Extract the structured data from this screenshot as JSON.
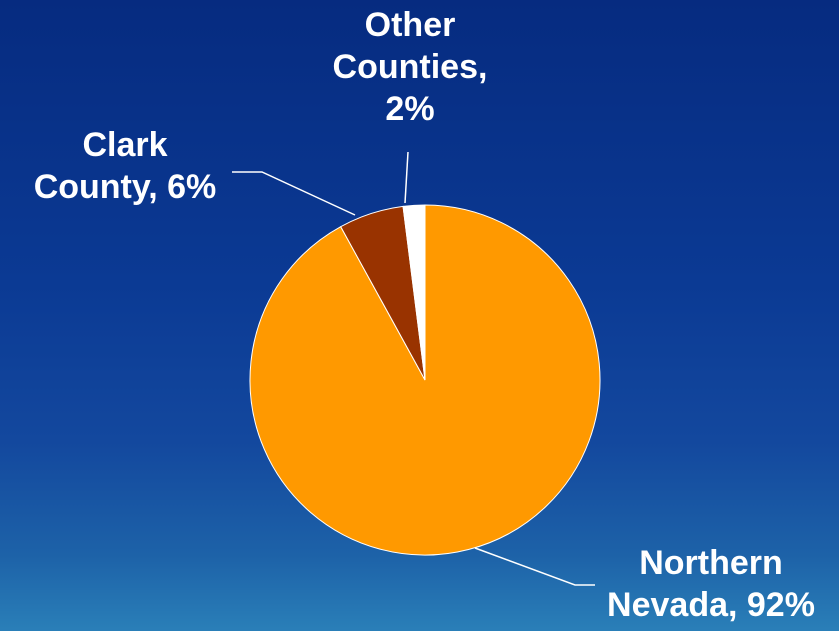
{
  "chart_data": {
    "type": "pie",
    "slices": [
      {
        "label_line1": "Northern",
        "label_line2": "Nevada, 92%",
        "value": 92,
        "color": "#ff9900"
      },
      {
        "label_line1": "Clark",
        "label_line2": "County, 6%",
        "value": 6,
        "color": "#993300"
      },
      {
        "label_line1": "Other",
        "label_line2": "Counties,",
        "label_line3": "2%",
        "value": 2,
        "color": "#ffffff"
      }
    ]
  }
}
